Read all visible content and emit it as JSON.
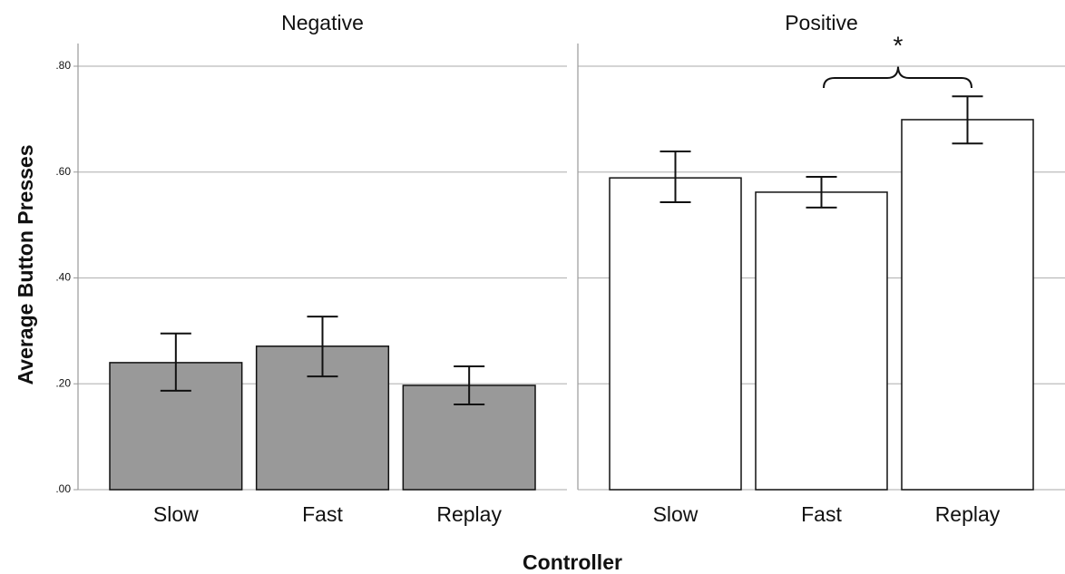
{
  "chart_data": {
    "type": "bar",
    "y_label": "Average Button Presses",
    "x_label": "Controller",
    "categories": [
      "Slow",
      "Fast",
      "Replay"
    ],
    "ylim": [
      0,
      0.8
    ],
    "yticks": [
      {
        "value": 0,
        "label": ".00"
      },
      {
        "value": 0.2,
        "label": ".20"
      },
      {
        "value": 0.4,
        "label": ".40"
      },
      {
        "value": 0.6,
        "label": ".60"
      },
      {
        "value": 0.8,
        "label": ".80"
      }
    ],
    "grid": true,
    "panels": [
      {
        "title": "Negative",
        "color": "#999999",
        "values": [
          0.24,
          0.271,
          0.197
        ],
        "ci_low": [
          0.187,
          0.214,
          0.161
        ],
        "ci_high": [
          0.295,
          0.327,
          0.233
        ]
      },
      {
        "title": "Positive",
        "color": "#ffffff",
        "values": [
          0.589,
          0.562,
          0.699
        ],
        "ci_low": [
          0.543,
          0.533,
          0.654
        ],
        "ci_high": [
          0.639,
          0.591,
          0.743
        ]
      }
    ],
    "annotation": "*"
  }
}
